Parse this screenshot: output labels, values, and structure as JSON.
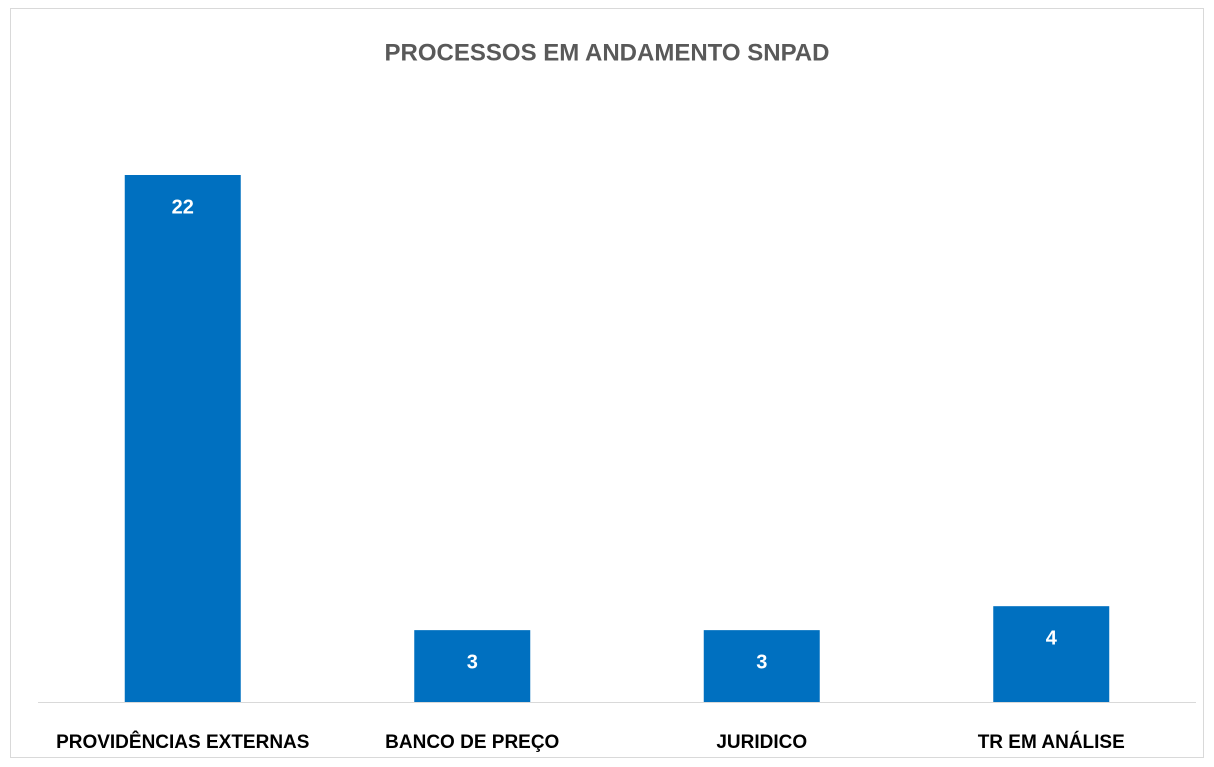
{
  "chart_data": {
    "type": "bar",
    "title": "PROCESSOS EM ANDAMENTO SNPAD",
    "categories": [
      "PROVIDÊNCIAS EXTERNAS",
      "BANCO DE PREÇO",
      "JURIDICO",
      "TR EM ANÁLISE"
    ],
    "values": [
      22,
      3,
      3,
      4
    ],
    "color": "#0070c0"
  }
}
